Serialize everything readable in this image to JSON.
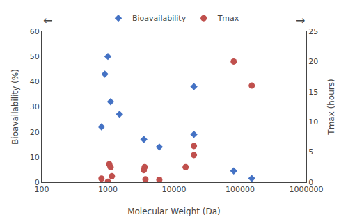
{
  "chart_data": {
    "type": "scatter",
    "xlabel": "Molecular Weight (Da)",
    "ylabel": "Bioavailability (%)",
    "y2label": "Tmax (hours)",
    "log": "x",
    "xlim": [
      100,
      1000000
    ],
    "xticks": [
      100,
      1000,
      10000,
      100000,
      1000000
    ],
    "ylim": [
      0,
      60
    ],
    "yticks": [
      0,
      10,
      20,
      30,
      40,
      50,
      60
    ],
    "y2lim": [
      0,
      25
    ],
    "y2ticks": [
      0,
      5,
      10,
      15,
      20,
      25
    ],
    "grid": false,
    "legend": "top",
    "annotations": [
      "←",
      "→"
    ],
    "series": [
      {
        "name": "Bioavailability",
        "color": "#4472C4",
        "marker": "diamond",
        "x": [
          800,
          900,
          1000,
          1100,
          1500,
          3500,
          6000,
          20000,
          20000,
          80000,
          150000
        ],
        "values": [
          22,
          43,
          50,
          32,
          27,
          17,
          14,
          38,
          19,
          4.5,
          1.5
        ]
      },
      {
        "name": "Tmax",
        "color": "#C0504D",
        "marker": "circle",
        "axis": "y2",
        "x": [
          800,
          1000,
          1050,
          1100,
          1150,
          3500,
          3600,
          3700,
          6000,
          15000,
          20000,
          20000,
          80000,
          150000
        ],
        "values": [
          0.6,
          0.1,
          3.0,
          2.5,
          1.0,
          2.0,
          2.5,
          0.5,
          0.4,
          2.5,
          4.5,
          6.0,
          20.0,
          16.0
        ]
      }
    ]
  }
}
